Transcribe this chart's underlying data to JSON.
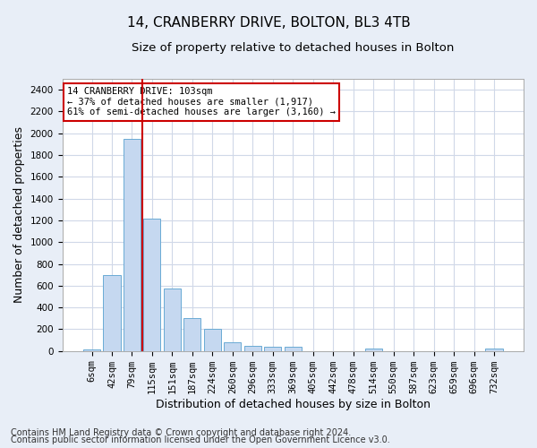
{
  "title": "14, CRANBERRY DRIVE, BOLTON, BL3 4TB",
  "subtitle": "Size of property relative to detached houses in Bolton",
  "xlabel": "Distribution of detached houses by size in Bolton",
  "ylabel": "Number of detached properties",
  "bar_labels": [
    "6sqm",
    "42sqm",
    "79sqm",
    "115sqm",
    "151sqm",
    "187sqm",
    "224sqm",
    "260sqm",
    "296sqm",
    "333sqm",
    "369sqm",
    "405sqm",
    "442sqm",
    "478sqm",
    "514sqm",
    "550sqm",
    "587sqm",
    "623sqm",
    "659sqm",
    "696sqm",
    "732sqm"
  ],
  "bar_values": [
    15,
    700,
    1950,
    1220,
    570,
    305,
    200,
    80,
    45,
    35,
    35,
    0,
    0,
    0,
    25,
    0,
    0,
    0,
    0,
    0,
    20
  ],
  "bar_color": "#c5d8f0",
  "bar_edgecolor": "#6aaad4",
  "vline_color": "#cc0000",
  "vline_x_index": 2.5,
  "ylim": [
    0,
    2500
  ],
  "yticks": [
    0,
    200,
    400,
    600,
    800,
    1000,
    1200,
    1400,
    1600,
    1800,
    2000,
    2200,
    2400
  ],
  "annotation_text": "14 CRANBERRY DRIVE: 103sqm\n← 37% of detached houses are smaller (1,917)\n61% of semi-detached houses are larger (3,160) →",
  "annotation_box_facecolor": "white",
  "annotation_box_edgecolor": "#cc0000",
  "footer1": "Contains HM Land Registry data © Crown copyright and database right 2024.",
  "footer2": "Contains public sector information licensed under the Open Government Licence v3.0.",
  "figure_facecolor": "#e8eef7",
  "axes_facecolor": "#ffffff",
  "grid_color": "#d0d8e8",
  "title_fontsize": 11,
  "subtitle_fontsize": 9.5,
  "ylabel_fontsize": 9,
  "xlabel_fontsize": 9,
  "tick_fontsize": 7.5,
  "annotation_fontsize": 7.5,
  "footer_fontsize": 7
}
